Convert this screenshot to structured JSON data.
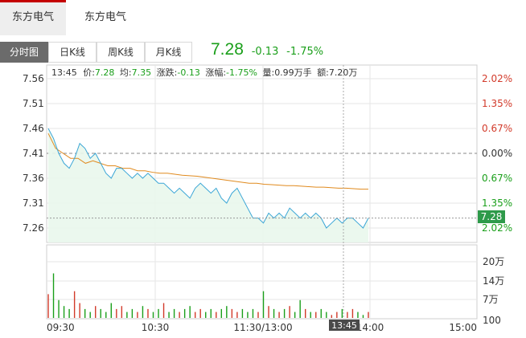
{
  "tabs_top": [
    {
      "label": "东方电气",
      "active": true
    },
    {
      "label": "东方电气",
      "active": false
    }
  ],
  "tabs_period": [
    "分时图",
    "日K线",
    "周K线",
    "月K线"
  ],
  "quote": {
    "price": "7.28",
    "change": "-0.13",
    "change_pct": "-1.75%"
  },
  "info_bar": {
    "time": "13:45",
    "price_label": "价:",
    "price": "7.28",
    "avg_label": "均:",
    "avg": "7.35",
    "change_label": "涨跌:",
    "change": "-0.13",
    "pct_label": "涨幅:",
    "pct": "-1.75%",
    "volume_label": "量:",
    "volume": "0.99万手",
    "amount_label": "额:",
    "amount": "7.20万"
  },
  "current_price_tag": "7.28",
  "cursor_time_tag": "13:45",
  "colors": {
    "up": "#d23a2a",
    "down": "#1a9f1a",
    "price_line": "#3aa6d6",
    "avg_line": "#e08a1e",
    "grid": "#e6e6e6"
  },
  "chart_data": {
    "type": "line",
    "y_ticks_price": [
      "7.56",
      "7.51",
      "7.46",
      "7.41",
      "7.36",
      "7.31",
      "7.26"
    ],
    "y_ticks_pct": [
      {
        "label": "2.02%",
        "dir": "up"
      },
      {
        "label": "1.35%",
        "dir": "up"
      },
      {
        "label": "0.67%",
        "dir": "up"
      },
      {
        "label": "0.00%",
        "dir": "flat"
      },
      {
        "label": "0.67%",
        "dir": "down"
      },
      {
        "label": "1.35%",
        "dir": "down"
      },
      {
        "label": "2.02%",
        "dir": "down"
      }
    ],
    "x_ticks": [
      "09:30",
      "10:30",
      "11:30/13:00",
      "14:00",
      "15:00"
    ],
    "volume_ticks": [
      "20万",
      "14万",
      "7万",
      "100"
    ],
    "prev_close": 7.41,
    "ylim": [
      7.24,
      7.58
    ],
    "series": [
      {
        "values": [
          7.46,
          7.44,
          7.41,
          7.39,
          7.38,
          7.4,
          7.43,
          7.42,
          7.4,
          7.41,
          7.39,
          7.37,
          7.36,
          7.38,
          7.38,
          7.37,
          7.36,
          7.37,
          7.36,
          7.37,
          7.36,
          7.35,
          7.35,
          7.34,
          7.33,
          7.34,
          7.33,
          7.32,
          7.34,
          7.35,
          7.34,
          7.33,
          7.34,
          7.32,
          7.31,
          7.33,
          7.34,
          7.32,
          7.3,
          7.28,
          7.28,
          7.27,
          7.29,
          7.28,
          7.29,
          7.28,
          7.3,
          7.29,
          7.28,
          7.29,
          7.28,
          7.29,
          7.28,
          7.26,
          7.27,
          7.28,
          7.27,
          7.28,
          7.28,
          7.27,
          7.26,
          7.28
        ]
      },
      {
        "values": [
          7.45,
          7.42,
          7.41,
          7.4,
          7.4,
          7.39,
          7.395,
          7.39,
          7.385,
          7.385,
          7.38,
          7.38,
          7.375,
          7.375,
          7.372,
          7.37,
          7.37,
          7.368,
          7.366,
          7.365,
          7.364,
          7.362,
          7.36,
          7.358,
          7.356,
          7.354,
          7.352,
          7.35,
          7.35,
          7.348,
          7.347,
          7.346,
          7.345,
          7.345,
          7.344,
          7.343,
          7.342,
          7.342,
          7.341,
          7.34,
          7.34,
          7.339,
          7.338,
          7.338
        ]
      }
    ],
    "volume": [
      8,
      15,
      6,
      4,
      3,
      9,
      5,
      3,
      2,
      4,
      3,
      2,
      5,
      3,
      4,
      2,
      3,
      2,
      4,
      3,
      2,
      3,
      5,
      2,
      3,
      2,
      3,
      4,
      2,
      3,
      2,
      3,
      2,
      3,
      4,
      3,
      2,
      3,
      2,
      3,
      2,
      9,
      4,
      3,
      2,
      3,
      4,
      2,
      6,
      3,
      2,
      2,
      3,
      2,
      1,
      2,
      3,
      2,
      3,
      2,
      1,
      2
    ]
  }
}
